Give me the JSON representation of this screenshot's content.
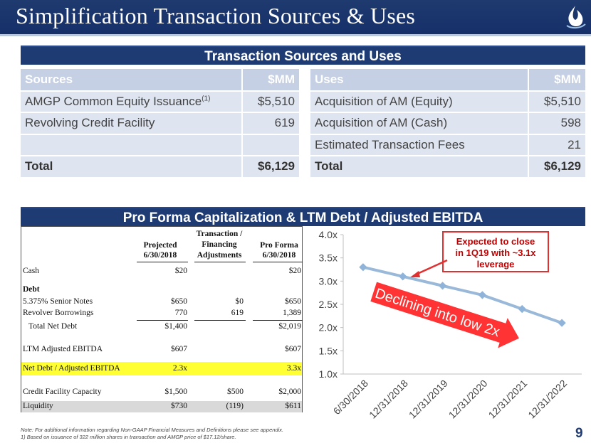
{
  "title": "Simplification Transaction Sources & Uses",
  "sources_uses": {
    "header": "Transaction Sources and Uses",
    "sources": {
      "col1": "Sources",
      "col2": "$MM",
      "rows": [
        {
          "label": "AMGP Common Equity Issuance",
          "sup": "(1)",
          "value": "$5,510"
        },
        {
          "label": "Revolving Credit Facility",
          "value": "619"
        },
        {
          "label": "",
          "value": ""
        }
      ],
      "total_label": "Total",
      "total_value": "$6,129"
    },
    "uses": {
      "col1": "Uses",
      "col2": "$MM",
      "rows": [
        {
          "label": "Acquisition of AM (Equity)",
          "value": "$5,510"
        },
        {
          "label": "Acquisition of AM (Cash)",
          "value": "598"
        },
        {
          "label": "Estimated Transaction Fees",
          "value": "21"
        }
      ],
      "total_label": "Total",
      "total_value": "$6,129"
    }
  },
  "capitalization": {
    "header": "Pro Forma Capitalization & LTM Debt / Adjusted EBITDA",
    "columns": {
      "projected_1": "Projected",
      "projected_2": "6/30/2018",
      "transaction_1": "Transaction /",
      "transaction_2": "Financing",
      "transaction_3": "Adjustments",
      "proforma_1": "Pro Forma",
      "proforma_2": "6/30/2018"
    },
    "rows": {
      "cash": {
        "label": "Cash",
        "projected": "$20",
        "adj": "",
        "proforma": "$20"
      },
      "debt_label": "Debt",
      "notes": {
        "label": "5.375% Senior Notes",
        "projected": "$650",
        "adj": "$0",
        "proforma": "$650"
      },
      "revolver": {
        "label": "Revolver Borrowings",
        "projected": "770",
        "adj": "619",
        "proforma": "1,389"
      },
      "total_debt": {
        "label": "Total Net Debt",
        "projected": "$1,400",
        "adj": "",
        "proforma": "$2,019"
      },
      "ebitda": {
        "label": "LTM Adjusted EBITDA",
        "projected": "$607",
        "adj": "",
        "proforma": "$607"
      },
      "leverage": {
        "label": "Net Debt / Adjusted EBITDA",
        "projected": "2.3x",
        "adj": "",
        "proforma": "3.3x"
      },
      "capacity": {
        "label": "Credit Facility Capacity",
        "projected": "$1,500",
        "adj": "$500",
        "proforma": "$2,000"
      },
      "liquidity": {
        "label": "Liquidity",
        "projected": "$730",
        "adj": "(119)",
        "proforma": "$611"
      }
    }
  },
  "chart_data": {
    "type": "line",
    "categories": [
      "6/30/2018",
      "12/31/2018",
      "12/31/2019",
      "12/31/2020",
      "12/31/2021",
      "12/31/2022"
    ],
    "series": [
      {
        "values": [
          3.3,
          3.1,
          2.9,
          2.7,
          2.4,
          2.1
        ]
      }
    ],
    "ylim": [
      1.0,
      4.0
    ],
    "yticks": [
      "1.0x",
      "1.5x",
      "2.0x",
      "2.5x",
      "3.0x",
      "3.5x",
      "4.0x"
    ],
    "grid": false,
    "series_color": "#9ab9d9",
    "annotations": {
      "callout": "Expected to close in 1Q19 with ~3.1x leverage",
      "callout_line1": "Expected to close",
      "callout_line2": "in 1Q19 with ~3.1x",
      "callout_line3": "leverage",
      "arrow_label": "Declining into low 2x",
      "arrow_color": "#ff3333"
    }
  },
  "footer": {
    "note1": "Note: For additional information regarding Non-GAAP Financial Measures and Definitions please see appendix.",
    "note2": "1) Based on issuance of 322 million shares in transaction and AMGP price of $17.12/share.",
    "page": "9"
  },
  "colors": {
    "title_bar": "#1e3a6e",
    "section_header": "#1f3b73",
    "table_header": "#c5d0e4",
    "table_row": "#dfe5f0",
    "highlight": "#ffff33"
  }
}
